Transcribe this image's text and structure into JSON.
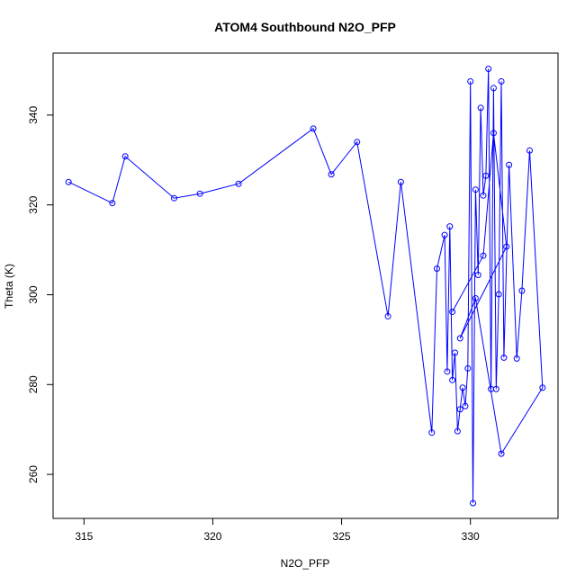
{
  "chart_data": {
    "type": "scatter",
    "title": "ATOM4 Southbound N2O_PFP",
    "xlabel": "N2O_PFP",
    "ylabel": "Theta (K)",
    "xlim": [
      313.8,
      333.4
    ],
    "ylim": [
      250.2,
      353.8
    ],
    "xticks": [
      315,
      320,
      325,
      330
    ],
    "yticks": [
      260,
      280,
      300,
      320,
      340
    ],
    "grid": false,
    "connected": true,
    "series_color": "#0000ff",
    "series": [
      {
        "x": [
          314.4,
          316.1,
          316.6,
          318.5,
          319.5,
          321.0,
          323.9,
          324.6,
          325.6,
          326.8,
          327.3,
          328.5,
          328.7,
          329.0,
          329.1,
          329.2,
          329.3,
          329.4,
          329.5,
          329.6,
          329.7,
          329.8,
          329.9,
          330.0,
          330.1,
          330.2,
          330.3,
          330.4,
          330.5,
          330.6,
          330.7,
          330.8,
          330.9,
          331.0,
          331.1,
          331.2,
          331.3,
          331.5,
          331.8,
          332.0,
          332.3,
          332.8,
          331.2,
          330.2,
          329.6,
          331.4,
          330.9,
          330.5,
          329.3
        ],
        "y": [
          325.1,
          320.4,
          330.8,
          321.5,
          322.5,
          324.7,
          337.0,
          326.8,
          334.0,
          295.2,
          325.1,
          269.3,
          305.8,
          313.3,
          282.9,
          315.2,
          281.0,
          287.1,
          269.6,
          274.5,
          279.3,
          275.2,
          283.6,
          347.5,
          253.6,
          323.4,
          304.4,
          341.6,
          322.1,
          326.5,
          350.3,
          279.0,
          346.0,
          279.0,
          300.1,
          347.5,
          286.0,
          328.9,
          285.8,
          300.9,
          332.1,
          279.3,
          264.6,
          299.2,
          290.3,
          310.7,
          336.0,
          308.7,
          296.2
        ]
      }
    ]
  }
}
